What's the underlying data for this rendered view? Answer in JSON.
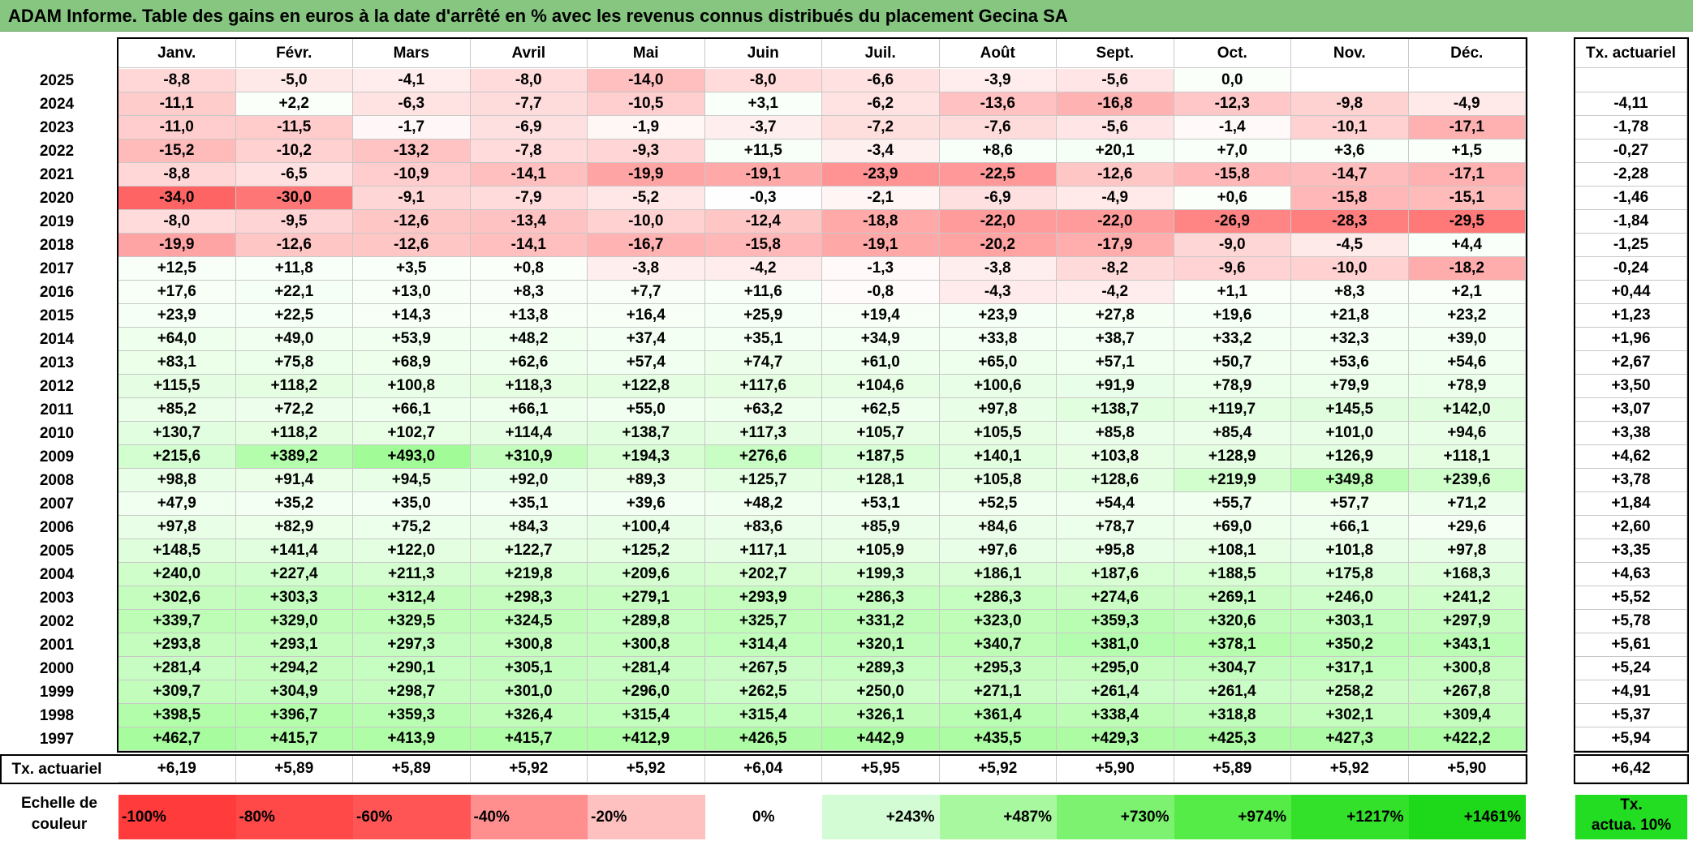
{
  "title": "ADAM Informe. Table des gains en euros à la date d'arrêté en % avec les revenus connus distribués du placement Gecina SA",
  "chart_data": {
    "type": "table",
    "columns": [
      "Janv.",
      "Févr.",
      "Mars",
      "Avril",
      "Mai",
      "Juin",
      "Juil.",
      "Août",
      "Sept.",
      "Oct.",
      "Nov.",
      "Déc."
    ],
    "rate_header": "Tx. actuariel",
    "rows": [
      {
        "year": "2025",
        "values": [
          "-8,8",
          "-5,0",
          "-4,1",
          "-8,0",
          "-14,0",
          "-8,0",
          "-6,6",
          "-3,9",
          "-5,6",
          "0,0",
          "",
          ""
        ],
        "rate": ""
      },
      {
        "year": "2024",
        "values": [
          "-11,1",
          "+2,2",
          "-6,3",
          "-7,7",
          "-10,5",
          "+3,1",
          "-6,2",
          "-13,6",
          "-16,8",
          "-12,3",
          "-9,8",
          "-4,9"
        ],
        "rate": "-4,11"
      },
      {
        "year": "2023",
        "values": [
          "-11,0",
          "-11,5",
          "-1,7",
          "-6,9",
          "-1,9",
          "-3,7",
          "-7,2",
          "-7,6",
          "-5,6",
          "-1,4",
          "-10,1",
          "-17,1"
        ],
        "rate": "-1,78"
      },
      {
        "year": "2022",
        "values": [
          "-15,2",
          "-10,2",
          "-13,2",
          "-7,8",
          "-9,3",
          "+11,5",
          "-3,4",
          "+8,6",
          "+20,1",
          "+7,0",
          "+3,6",
          "+1,5"
        ],
        "rate": "-0,27"
      },
      {
        "year": "2021",
        "values": [
          "-8,8",
          "-6,5",
          "-10,9",
          "-14,1",
          "-19,9",
          "-19,1",
          "-23,9",
          "-22,5",
          "-12,6",
          "-15,8",
          "-14,7",
          "-17,1"
        ],
        "rate": "-2,28"
      },
      {
        "year": "2020",
        "values": [
          "-34,0",
          "-30,0",
          "-9,1",
          "-7,9",
          "-5,2",
          "-0,3",
          "-2,1",
          "-6,9",
          "-4,9",
          "+0,6",
          "-15,8",
          "-15,1"
        ],
        "rate": "-1,46"
      },
      {
        "year": "2019",
        "values": [
          "-8,0",
          "-9,5",
          "-12,6",
          "-13,4",
          "-10,0",
          "-12,4",
          "-18,8",
          "-22,0",
          "-22,0",
          "-26,9",
          "-28,3",
          "-29,5"
        ],
        "rate": "-1,84"
      },
      {
        "year": "2018",
        "values": [
          "-19,9",
          "-12,6",
          "-12,6",
          "-14,1",
          "-16,7",
          "-15,8",
          "-19,1",
          "-20,2",
          "-17,9",
          "-9,0",
          "-4,5",
          "+4,4"
        ],
        "rate": "-1,25"
      },
      {
        "year": "2017",
        "values": [
          "+12,5",
          "+11,8",
          "+3,5",
          "+0,8",
          "-3,8",
          "-4,2",
          "-1,3",
          "-3,8",
          "-8,2",
          "-9,6",
          "-10,0",
          "-18,2"
        ],
        "rate": "-0,24"
      },
      {
        "year": "2016",
        "values": [
          "+17,6",
          "+22,1",
          "+13,0",
          "+8,3",
          "+7,7",
          "+11,6",
          "-0,8",
          "-4,3",
          "-4,2",
          "+1,1",
          "+8,3",
          "+2,1"
        ],
        "rate": "+0,44"
      },
      {
        "year": "2015",
        "values": [
          "+23,9",
          "+22,5",
          "+14,3",
          "+13,8",
          "+16,4",
          "+25,9",
          "+19,4",
          "+23,9",
          "+27,8",
          "+19,6",
          "+21,8",
          "+23,2"
        ],
        "rate": "+1,23"
      },
      {
        "year": "2014",
        "values": [
          "+64,0",
          "+49,0",
          "+53,9",
          "+48,2",
          "+37,4",
          "+35,1",
          "+34,9",
          "+33,8",
          "+38,7",
          "+33,2",
          "+32,3",
          "+39,0"
        ],
        "rate": "+1,96"
      },
      {
        "year": "2013",
        "values": [
          "+83,1",
          "+75,8",
          "+68,9",
          "+62,6",
          "+57,4",
          "+74,7",
          "+61,0",
          "+65,0",
          "+57,1",
          "+50,7",
          "+53,6",
          "+54,6"
        ],
        "rate": "+2,67"
      },
      {
        "year": "2012",
        "values": [
          "+115,5",
          "+118,2",
          "+100,8",
          "+118,3",
          "+122,8",
          "+117,6",
          "+104,6",
          "+100,6",
          "+91,9",
          "+78,9",
          "+79,9",
          "+78,9"
        ],
        "rate": "+3,50"
      },
      {
        "year": "2011",
        "values": [
          "+85,2",
          "+72,2",
          "+66,1",
          "+66,1",
          "+55,0",
          "+63,2",
          "+62,5",
          "+97,8",
          "+138,7",
          "+119,7",
          "+145,5",
          "+142,0"
        ],
        "rate": "+3,07"
      },
      {
        "year": "2010",
        "values": [
          "+130,7",
          "+118,2",
          "+102,7",
          "+114,4",
          "+138,7",
          "+117,3",
          "+105,7",
          "+105,5",
          "+85,8",
          "+85,4",
          "+101,0",
          "+94,6"
        ],
        "rate": "+3,38"
      },
      {
        "year": "2009",
        "values": [
          "+215,6",
          "+389,2",
          "+493,0",
          "+310,9",
          "+194,3",
          "+276,6",
          "+187,5",
          "+140,1",
          "+103,8",
          "+128,9",
          "+126,9",
          "+118,1"
        ],
        "rate": "+4,62"
      },
      {
        "year": "2008",
        "values": [
          "+98,8",
          "+91,4",
          "+94,5",
          "+92,0",
          "+89,3",
          "+125,7",
          "+128,1",
          "+105,8",
          "+128,6",
          "+219,9",
          "+349,8",
          "+239,6"
        ],
        "rate": "+3,78"
      },
      {
        "year": "2007",
        "values": [
          "+47,9",
          "+35,2",
          "+35,0",
          "+35,1",
          "+39,6",
          "+48,2",
          "+53,1",
          "+52,5",
          "+54,4",
          "+55,7",
          "+57,7",
          "+71,2"
        ],
        "rate": "+1,84"
      },
      {
        "year": "2006",
        "values": [
          "+97,8",
          "+82,9",
          "+75,2",
          "+84,3",
          "+100,4",
          "+83,6",
          "+85,9",
          "+84,6",
          "+78,7",
          "+69,0",
          "+66,1",
          "+29,6"
        ],
        "rate": "+2,60"
      },
      {
        "year": "2005",
        "values": [
          "+148,5",
          "+141,4",
          "+122,0",
          "+122,7",
          "+125,2",
          "+117,1",
          "+105,9",
          "+97,6",
          "+95,8",
          "+108,1",
          "+101,8",
          "+97,8"
        ],
        "rate": "+3,35"
      },
      {
        "year": "2004",
        "values": [
          "+240,0",
          "+227,4",
          "+211,3",
          "+219,8",
          "+209,6",
          "+202,7",
          "+199,3",
          "+186,1",
          "+187,6",
          "+188,5",
          "+175,8",
          "+168,3"
        ],
        "rate": "+4,63"
      },
      {
        "year": "2003",
        "values": [
          "+302,6",
          "+303,3",
          "+312,4",
          "+298,3",
          "+279,1",
          "+293,9",
          "+286,3",
          "+286,3",
          "+274,6",
          "+269,1",
          "+246,0",
          "+241,2"
        ],
        "rate": "+5,52"
      },
      {
        "year": "2002",
        "values": [
          "+339,7",
          "+329,0",
          "+329,5",
          "+324,5",
          "+289,8",
          "+325,7",
          "+331,2",
          "+323,0",
          "+359,3",
          "+320,6",
          "+303,1",
          "+297,9"
        ],
        "rate": "+5,78"
      },
      {
        "year": "2001",
        "values": [
          "+293,8",
          "+293,1",
          "+297,3",
          "+300,8",
          "+300,8",
          "+314,4",
          "+320,1",
          "+340,7",
          "+381,0",
          "+378,1",
          "+350,2",
          "+343,1"
        ],
        "rate": "+5,61"
      },
      {
        "year": "2000",
        "values": [
          "+281,4",
          "+294,2",
          "+290,1",
          "+305,1",
          "+281,4",
          "+267,5",
          "+289,3",
          "+295,3",
          "+295,0",
          "+304,7",
          "+317,1",
          "+300,8"
        ],
        "rate": "+5,24"
      },
      {
        "year": "1999",
        "values": [
          "+309,7",
          "+304,9",
          "+298,7",
          "+301,0",
          "+296,0",
          "+262,5",
          "+250,0",
          "+271,1",
          "+261,4",
          "+261,4",
          "+258,2",
          "+267,8"
        ],
        "rate": "+4,91"
      },
      {
        "year": "1998",
        "values": [
          "+398,5",
          "+396,7",
          "+359,3",
          "+326,4",
          "+315,4",
          "+315,4",
          "+326,1",
          "+361,4",
          "+338,4",
          "+318,8",
          "+302,1",
          "+309,4"
        ],
        "rate": "+5,37"
      },
      {
        "year": "1997",
        "values": [
          "+462,7",
          "+415,7",
          "+413,9",
          "+415,7",
          "+412,9",
          "+426,5",
          "+442,9",
          "+435,5",
          "+429,3",
          "+425,3",
          "+427,3",
          "+422,2"
        ],
        "rate": "+5,94"
      }
    ],
    "footer": {
      "label": "Tx. actuariel",
      "values": [
        "+6,19",
        "+5,89",
        "+5,89",
        "+5,92",
        "+5,92",
        "+6,04",
        "+5,95",
        "+5,92",
        "+5,90",
        "+5,89",
        "+5,92",
        "+5,90"
      ],
      "rate": "+6,42"
    },
    "legend": {
      "title_line1": "Echelle de",
      "title_line2": "couleur",
      "items": [
        {
          "label": "-100%",
          "color": "#ff3b3b"
        },
        {
          "label": "-80%",
          "color": "#ff4848"
        },
        {
          "label": "-60%",
          "color": "#ff5555"
        },
        {
          "label": "-40%",
          "color": "#ff8e8e"
        },
        {
          "label": "-20%",
          "color": "#ffc0c0"
        },
        {
          "label": "0%",
          "color": "#ffffff"
        },
        {
          "label": "+243%",
          "color": "#d4fcd4"
        },
        {
          "label": "+487%",
          "color": "#a8f8a0"
        },
        {
          "label": "+730%",
          "color": "#7cf270"
        },
        {
          "label": "+974%",
          "color": "#55ec48"
        },
        {
          "label": "+1217%",
          "color": "#33e02a"
        },
        {
          "label": "+1461%",
          "color": "#1ed81a"
        }
      ],
      "rate_line1": "Tx.",
      "rate_line2": "actua. 10%",
      "rate_color": "#22dd22"
    }
  }
}
